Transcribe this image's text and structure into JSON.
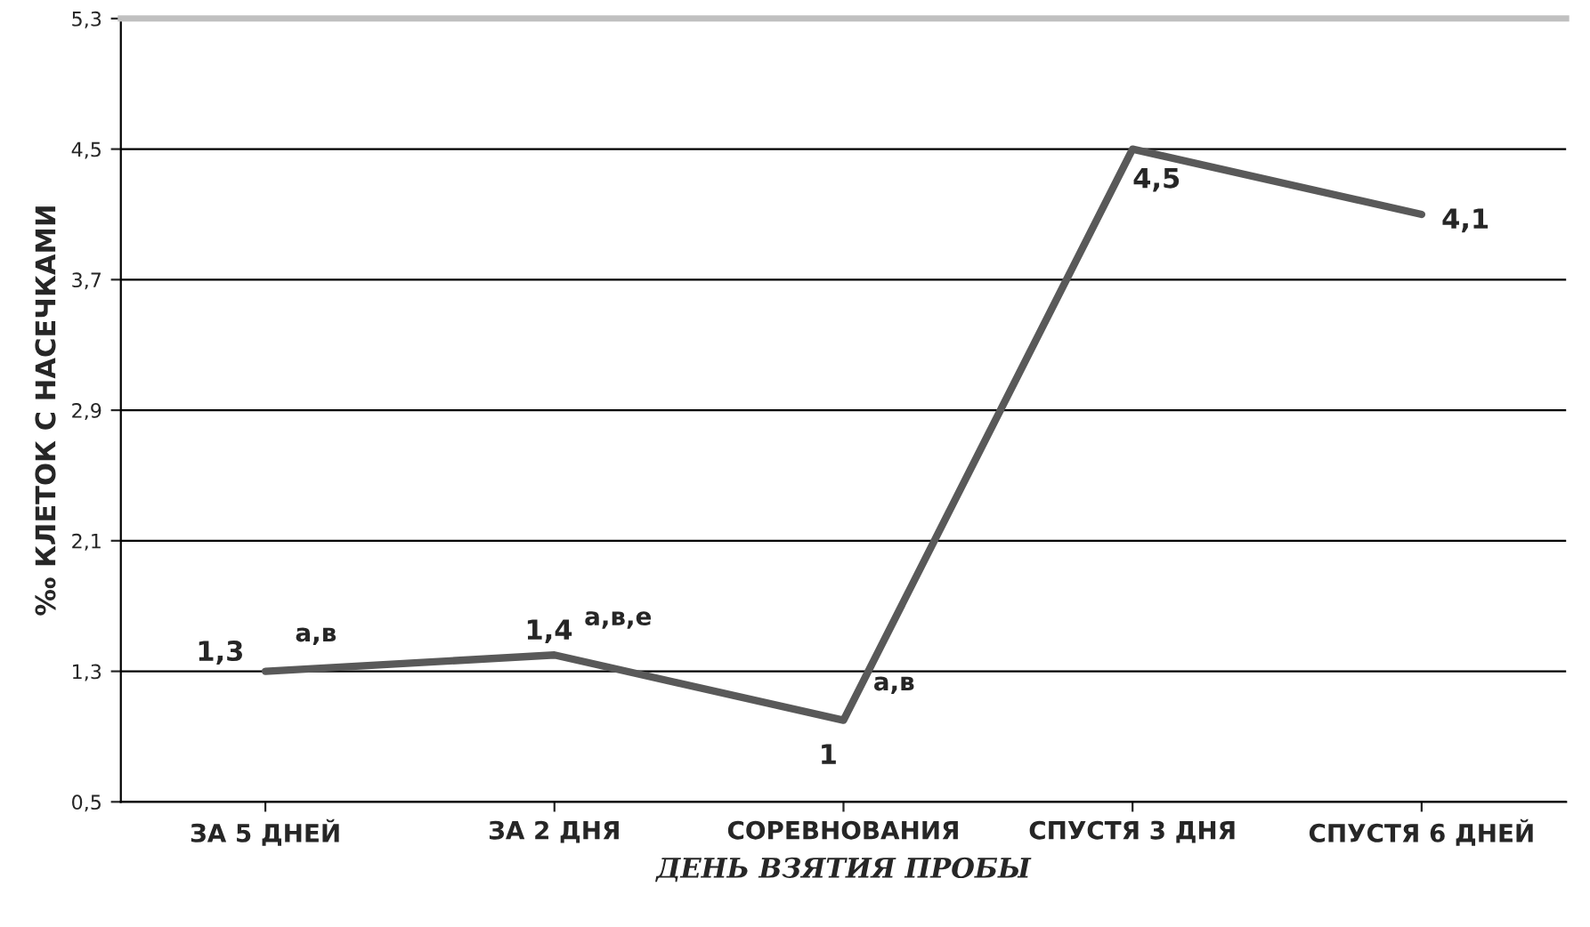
{
  "chart_data": {
    "type": "line",
    "xlabel": "ДЕНЬ ВЗЯТИЯ ПРОБЫ",
    "ylabel": "‰ КЛЕТОК С НАСЕЧКАМИ",
    "categories": [
      "ЗА 5 ДНЕЙ",
      "ЗА 2 ДНЯ",
      "СОРЕВНОВАНИЯ",
      "СПУСТЯ 3 ДНЯ",
      "СПУСТЯ 6 ДНЕЙ"
    ],
    "series": [
      {
        "color": "#595959",
        "values": [
          1.3,
          1.4,
          1.0,
          4.5,
          4.1
        ],
        "value_labels": [
          "1,3",
          "1,4",
          "1",
          "4,5",
          "4,1"
        ]
      }
    ],
    "ylim": [
      0.5,
      5.3
    ],
    "yticks": [
      {
        "value": 0.5,
        "label": "0,5"
      },
      {
        "value": 1.3,
        "label": "1,3"
      },
      {
        "value": 2.1,
        "label": "2,1"
      },
      {
        "value": 2.9,
        "label": "2,9"
      },
      {
        "value": 3.7,
        "label": "3,7"
      },
      {
        "value": 4.5,
        "label": "4,5"
      },
      {
        "value": 5.3,
        "label": "5,3"
      }
    ],
    "grid": "y",
    "marker": "none",
    "line_style": "solid",
    "annotations": [
      {
        "text": "а,в",
        "x": "ЗА 5 ДНЕЙ",
        "y": 1.3
      },
      {
        "text": "а,в,е",
        "x": "ЗА 2 ДНЯ",
        "y": 1.4
      },
      {
        "text": "а,в",
        "x": "СОРЕВНОВАНИЯ",
        "y": 1.0
      }
    ]
  }
}
